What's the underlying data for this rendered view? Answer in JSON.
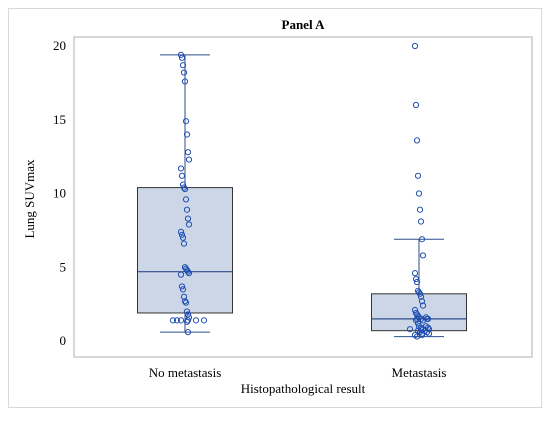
{
  "chart_data": {
    "type": "box",
    "title": "Panel A",
    "xlabel": "Histopathological result",
    "ylabel": "Lung SUVmax",
    "ylim": [
      0,
      20
    ],
    "yticks": [
      0,
      5,
      10,
      15,
      20
    ],
    "categories": [
      "No metastasis",
      "Metastasis"
    ],
    "boxes": [
      {
        "category": "No metastasis",
        "whisker_low": 0.6,
        "q1": 1.9,
        "median": 4.7,
        "q3": 10.4,
        "whisker_high": 19.4,
        "points": [
          19.4,
          19.2,
          18.7,
          18.2,
          17.6,
          14.9,
          14.0,
          12.8,
          12.3,
          11.7,
          11.2,
          10.6,
          10.4,
          10.3,
          9.6,
          8.9,
          8.3,
          7.9,
          7.4,
          7.2,
          7.0,
          6.6,
          5.0,
          4.9,
          4.8,
          4.7,
          4.6,
          4.5,
          3.7,
          3.5,
          3.0,
          2.7,
          2.6,
          2.0,
          1.8,
          1.6,
          1.4,
          1.4,
          1.4,
          1.4,
          1.4,
          1.4,
          1.3,
          0.6
        ]
      },
      {
        "category": "Metastasis",
        "whisker_low": 0.3,
        "q1": 0.7,
        "median": 1.5,
        "q3": 3.2,
        "whisker_high": 6.9,
        "points": [
          20.0,
          16.0,
          13.6,
          11.2,
          10.0,
          8.9,
          8.1,
          6.9,
          5.8,
          4.6,
          4.2,
          4.0,
          3.4,
          3.3,
          3.2,
          3.0,
          2.7,
          2.4,
          2.1,
          1.9,
          1.8,
          1.7,
          1.6,
          1.6,
          1.5,
          1.5,
          1.5,
          1.5,
          1.4,
          1.4,
          1.2,
          1.0,
          1.0,
          0.9,
          0.9,
          0.8,
          0.8,
          0.8,
          0.8,
          0.7,
          0.7,
          0.6,
          0.6,
          0.5,
          0.5,
          0.4,
          0.4,
          0.3
        ]
      }
    ],
    "grid": false,
    "colors": {
      "box_fill": "#ccd6e6",
      "box_stroke": "#2e4e8a",
      "point_stroke": "#1f4fb4",
      "frame": "#b0b0b0"
    }
  }
}
